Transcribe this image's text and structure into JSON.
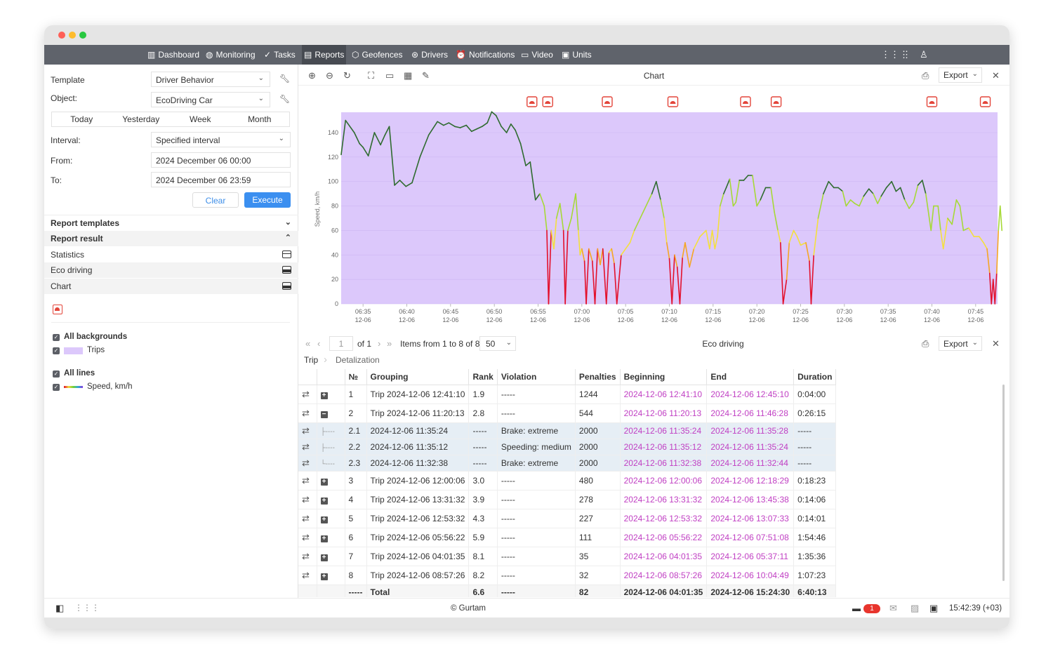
{
  "nav": {
    "items": [
      {
        "label": "Dashboard",
        "icon": "bar-chart-icon"
      },
      {
        "label": "Monitoring",
        "icon": "globe-icon"
      },
      {
        "label": "Tasks",
        "icon": "check-circle-icon"
      },
      {
        "label": "Reports",
        "icon": "report-icon"
      },
      {
        "label": "Geofences",
        "icon": "geofence-icon"
      },
      {
        "label": "Drivers",
        "icon": "steering-wheel-icon"
      },
      {
        "label": "Notifications",
        "icon": "alarm-icon"
      },
      {
        "label": "Video",
        "icon": "video-icon"
      },
      {
        "label": "Units",
        "icon": "bus-icon"
      }
    ]
  },
  "left": {
    "template_label": "Template",
    "template_value": "Driver Behavior",
    "object_label": "Object:",
    "object_value": "EcoDriving Car",
    "periods": [
      "Today",
      "Yesterday",
      "Week",
      "Month"
    ],
    "interval_label": "Interval:",
    "interval_value": "Specified interval",
    "from_label": "From:",
    "from_value": "2024 December 06 00:00",
    "to_label": "To:",
    "to_value": "2024 December 06 23:59",
    "clear": "Clear",
    "execute": "Execute",
    "report_templates": "Report templates",
    "report_result": "Report result",
    "results": [
      "Statistics",
      "Eco driving",
      "Chart"
    ],
    "all_backgrounds": "All backgrounds",
    "trips": "Trips",
    "all_lines": "All lines",
    "speed_line": "Speed, km/h"
  },
  "chart_panel": {
    "title": "Chart",
    "export": "Export"
  },
  "chart_data": {
    "type": "line",
    "ylabel": "Speed, km/h",
    "ylim": [
      0,
      150
    ],
    "yticks": [
      0,
      20,
      40,
      60,
      80,
      100,
      120,
      140
    ],
    "xticks": [
      {
        "t": "06:35",
        "d": "12-06"
      },
      {
        "t": "06:40",
        "d": "12-06"
      },
      {
        "t": "06:45",
        "d": "12-06"
      },
      {
        "t": "06:50",
        "d": "12-06"
      },
      {
        "t": "06:55",
        "d": "12-06"
      },
      {
        "t": "07:00",
        "d": "12-06"
      },
      {
        "t": "07:05",
        "d": "12-06"
      },
      {
        "t": "07:10",
        "d": "12-06"
      },
      {
        "t": "07:15",
        "d": "12-06"
      },
      {
        "t": "07:20",
        "d": "12-06"
      },
      {
        "t": "07:25",
        "d": "12-06"
      },
      {
        "t": "07:30",
        "d": "12-06"
      },
      {
        "t": "07:35",
        "d": "12-06"
      },
      {
        "t": "07:40",
        "d": "12-06"
      },
      {
        "t": "07:45",
        "d": "12-06"
      }
    ],
    "x_minutes_range": [
      32.5,
      107.5
    ],
    "background": {
      "name": "Trips",
      "color": "#dcc8fb"
    },
    "series": [
      {
        "points": [
          [
            32.5,
            122
          ],
          [
            33.0,
            150
          ],
          [
            34.0,
            140
          ],
          [
            34.6,
            131
          ],
          [
            35.0,
            128
          ],
          [
            35.6,
            121
          ],
          [
            36.3,
            140
          ],
          [
            37.0,
            130
          ],
          [
            37.5,
            138
          ],
          [
            38.0,
            145
          ],
          [
            38.6,
            97
          ],
          [
            39.2,
            101
          ],
          [
            39.9,
            96
          ],
          [
            40.6,
            99
          ],
          [
            41.5,
            120
          ],
          [
            42.5,
            138
          ],
          [
            43.5,
            149
          ],
          [
            44.2,
            146
          ],
          [
            44.8,
            148
          ],
          [
            45.5,
            145
          ],
          [
            46.1,
            144
          ],
          [
            46.8,
            146
          ],
          [
            47.4,
            141
          ],
          [
            48.0,
            143
          ],
          [
            48.6,
            145
          ],
          [
            49.2,
            148
          ],
          [
            49.7,
            157
          ],
          [
            50.2,
            154
          ],
          [
            50.8,
            145
          ],
          [
            51.4,
            140
          ],
          [
            51.9,
            147
          ],
          [
            52.4,
            142
          ],
          [
            53.0,
            131
          ],
          [
            53.6,
            113
          ],
          [
            54.1,
            116
          ],
          [
            54.7,
            85
          ],
          [
            55.2,
            90
          ],
          [
            55.7,
            80
          ],
          [
            56.0,
            60
          ],
          [
            56.2,
            0
          ],
          [
            56.5,
            60
          ],
          [
            56.8,
            45
          ],
          [
            57.1,
            70
          ],
          [
            57.5,
            82
          ],
          [
            57.9,
            60
          ],
          [
            58.1,
            0
          ],
          [
            58.4,
            60
          ],
          [
            58.8,
            70
          ],
          [
            59.3,
            90
          ],
          [
            59.6,
            60
          ],
          [
            59.8,
            40
          ],
          [
            60.0,
            45
          ],
          [
            60.3,
            35
          ],
          [
            60.5,
            0
          ],
          [
            60.8,
            45
          ],
          [
            61.2,
            35
          ],
          [
            61.5,
            0
          ],
          [
            61.8,
            45
          ],
          [
            62.1,
            32
          ],
          [
            62.4,
            45
          ],
          [
            62.8,
            0
          ],
          [
            63.1,
            42
          ],
          [
            63.4,
            45
          ],
          [
            63.7,
            33
          ],
          [
            64.0,
            0
          ],
          [
            64.5,
            40
          ],
          [
            65.0,
            45
          ],
          [
            65.5,
            50
          ],
          [
            66.0,
            60
          ],
          [
            67.0,
            75
          ],
          [
            68.0,
            90
          ],
          [
            68.5,
            100
          ],
          [
            69.0,
            85
          ],
          [
            69.4,
            70
          ],
          [
            69.7,
            50
          ],
          [
            70.0,
            37
          ],
          [
            70.3,
            0
          ],
          [
            70.6,
            40
          ],
          [
            70.9,
            30
          ],
          [
            71.2,
            0
          ],
          [
            71.5,
            38
          ],
          [
            71.8,
            50
          ],
          [
            72.3,
            30
          ],
          [
            72.8,
            45
          ],
          [
            73.5,
            55
          ],
          [
            74.2,
            60
          ],
          [
            74.6,
            45
          ],
          [
            74.9,
            60
          ],
          [
            75.2,
            45
          ],
          [
            75.5,
            55
          ],
          [
            75.8,
            80
          ],
          [
            76.2,
            90
          ],
          [
            76.5,
            95
          ],
          [
            76.9,
            102
          ],
          [
            77.3,
            80
          ],
          [
            77.6,
            83
          ],
          [
            78.0,
            101
          ],
          [
            78.5,
            101
          ],
          [
            79.0,
            105
          ],
          [
            79.5,
            105
          ],
          [
            80.0,
            80
          ],
          [
            80.4,
            85
          ],
          [
            81.0,
            95
          ],
          [
            81.6,
            95
          ],
          [
            82.0,
            75
          ],
          [
            82.4,
            60
          ],
          [
            82.7,
            50
          ],
          [
            83.0,
            0
          ],
          [
            83.4,
            20
          ],
          [
            83.7,
            50
          ],
          [
            84.2,
            60
          ],
          [
            84.6,
            55
          ],
          [
            85.0,
            48
          ],
          [
            85.6,
            50
          ],
          [
            86.0,
            35
          ],
          [
            86.2,
            0
          ],
          [
            86.5,
            40
          ],
          [
            87.0,
            70
          ],
          [
            87.6,
            90
          ],
          [
            88.2,
            100
          ],
          [
            88.8,
            95
          ],
          [
            89.3,
            95
          ],
          [
            89.8,
            92
          ],
          [
            90.2,
            80
          ],
          [
            90.7,
            85
          ],
          [
            91.2,
            82
          ],
          [
            91.7,
            80
          ],
          [
            92.2,
            88
          ],
          [
            92.8,
            94
          ],
          [
            93.3,
            90
          ],
          [
            93.8,
            82
          ],
          [
            94.2,
            88
          ],
          [
            94.8,
            95
          ],
          [
            95.4,
            100
          ],
          [
            95.9,
            92
          ],
          [
            96.4,
            95
          ],
          [
            96.9,
            85
          ],
          [
            97.4,
            78
          ],
          [
            97.9,
            83
          ],
          [
            98.4,
            97
          ],
          [
            98.9,
            101
          ],
          [
            99.3,
            90
          ],
          [
            99.9,
            60
          ],
          [
            100.2,
            80
          ],
          [
            100.7,
            80
          ],
          [
            101.0,
            60
          ],
          [
            101.3,
            45
          ],
          [
            101.8,
            70
          ],
          [
            102.3,
            65
          ],
          [
            102.8,
            85
          ],
          [
            103.2,
            80
          ],
          [
            103.6,
            60
          ],
          [
            104.2,
            62
          ],
          [
            104.8,
            55
          ],
          [
            105.4,
            55
          ],
          [
            105.9,
            50
          ],
          [
            106.3,
            45
          ],
          [
            106.6,
            25
          ],
          [
            106.8,
            0
          ],
          [
            107.0,
            20
          ],
          [
            107.2,
            0
          ],
          [
            107.4,
            25
          ],
          [
            107.6,
            60
          ],
          [
            107.8,
            80
          ],
          [
            108.0,
            60
          ]
        ]
      }
    ],
    "event_markers_minutes": [
      54.3,
      56.1,
      62.9,
      70.4,
      78.7,
      82.2,
      100.0,
      106.1
    ]
  },
  "table_panel": {
    "page_value": "1",
    "of_pages": "of 1",
    "items_text": "Items from 1 to 8 of 8",
    "per_page": "50",
    "title": "Eco driving",
    "export": "Export",
    "tab_trip": "Trip",
    "tab_detail": "Detalization",
    "headers": [
      "№",
      "Grouping",
      "Rank",
      "Violation",
      "Penalties",
      "Beginning",
      "End",
      "Duration"
    ],
    "rows": [
      {
        "type": "row",
        "exp": "+",
        "c": [
          "1",
          "Trip 2024-12-06 12:41:10",
          "1.9",
          "-----",
          "1244",
          "2024-12-06 12:41:10",
          "2024-12-06 12:45:10",
          "0:04:00"
        ]
      },
      {
        "type": "row",
        "exp": "−",
        "c": [
          "2",
          "Trip 2024-12-06 11:20:13",
          "2.8",
          "-----",
          "544",
          "2024-12-06 11:20:13",
          "2024-12-06 11:46:28",
          "0:26:15"
        ]
      },
      {
        "type": "sub",
        "exp": "├----",
        "c": [
          "2.1",
          "2024-12-06 11:35:24",
          "-----",
          "Brake: extreme",
          "2000",
          "2024-12-06 11:35:24",
          "2024-12-06 11:35:28",
          "-----"
        ]
      },
      {
        "type": "sub",
        "exp": "├----",
        "c": [
          "2.2",
          "2024-12-06 11:35:12",
          "-----",
          "Speeding: medium",
          "2000",
          "2024-12-06 11:35:12",
          "2024-12-06 11:35:24",
          "-----"
        ]
      },
      {
        "type": "sub",
        "exp": "└----",
        "c": [
          "2.3",
          "2024-12-06 11:32:38",
          "-----",
          "Brake: extreme",
          "2000",
          "2024-12-06 11:32:38",
          "2024-12-06 11:32:44",
          "-----"
        ]
      },
      {
        "type": "row",
        "exp": "+",
        "c": [
          "3",
          "Trip 2024-12-06 12:00:06",
          "3.0",
          "-----",
          "480",
          "2024-12-06 12:00:06",
          "2024-12-06 12:18:29",
          "0:18:23"
        ]
      },
      {
        "type": "row",
        "exp": "+",
        "c": [
          "4",
          "Trip 2024-12-06 13:31:32",
          "3.9",
          "-----",
          "278",
          "2024-12-06 13:31:32",
          "2024-12-06 13:45:38",
          "0:14:06"
        ]
      },
      {
        "type": "row",
        "exp": "+",
        "c": [
          "5",
          "Trip 2024-12-06 12:53:32",
          "4.3",
          "-----",
          "227",
          "2024-12-06 12:53:32",
          "2024-12-06 13:07:33",
          "0:14:01"
        ]
      },
      {
        "type": "row",
        "exp": "+",
        "c": [
          "6",
          "Trip 2024-12-06 05:56:22",
          "5.9",
          "-----",
          "111",
          "2024-12-06 05:56:22",
          "2024-12-06 07:51:08",
          "1:54:46"
        ]
      },
      {
        "type": "row",
        "exp": "+",
        "c": [
          "7",
          "Trip 2024-12-06 04:01:35",
          "8.1",
          "-----",
          "35",
          "2024-12-06 04:01:35",
          "2024-12-06 05:37:11",
          "1:35:36"
        ]
      },
      {
        "type": "row",
        "exp": "+",
        "c": [
          "8",
          "Trip 2024-12-06 08:57:26",
          "8.2",
          "-----",
          "32",
          "2024-12-06 08:57:26",
          "2024-12-06 10:04:49",
          "1:07:23"
        ]
      },
      {
        "type": "total",
        "exp": "",
        "c": [
          "-----",
          "Total",
          "6.6",
          "-----",
          "82",
          "2024-12-06 04:01:35",
          "2024-12-06 15:24:30",
          "6:40:13"
        ]
      }
    ]
  },
  "footer": {
    "copyright": "© Gurtam",
    "badge": "1",
    "time": "15:42:39 (+03)"
  }
}
